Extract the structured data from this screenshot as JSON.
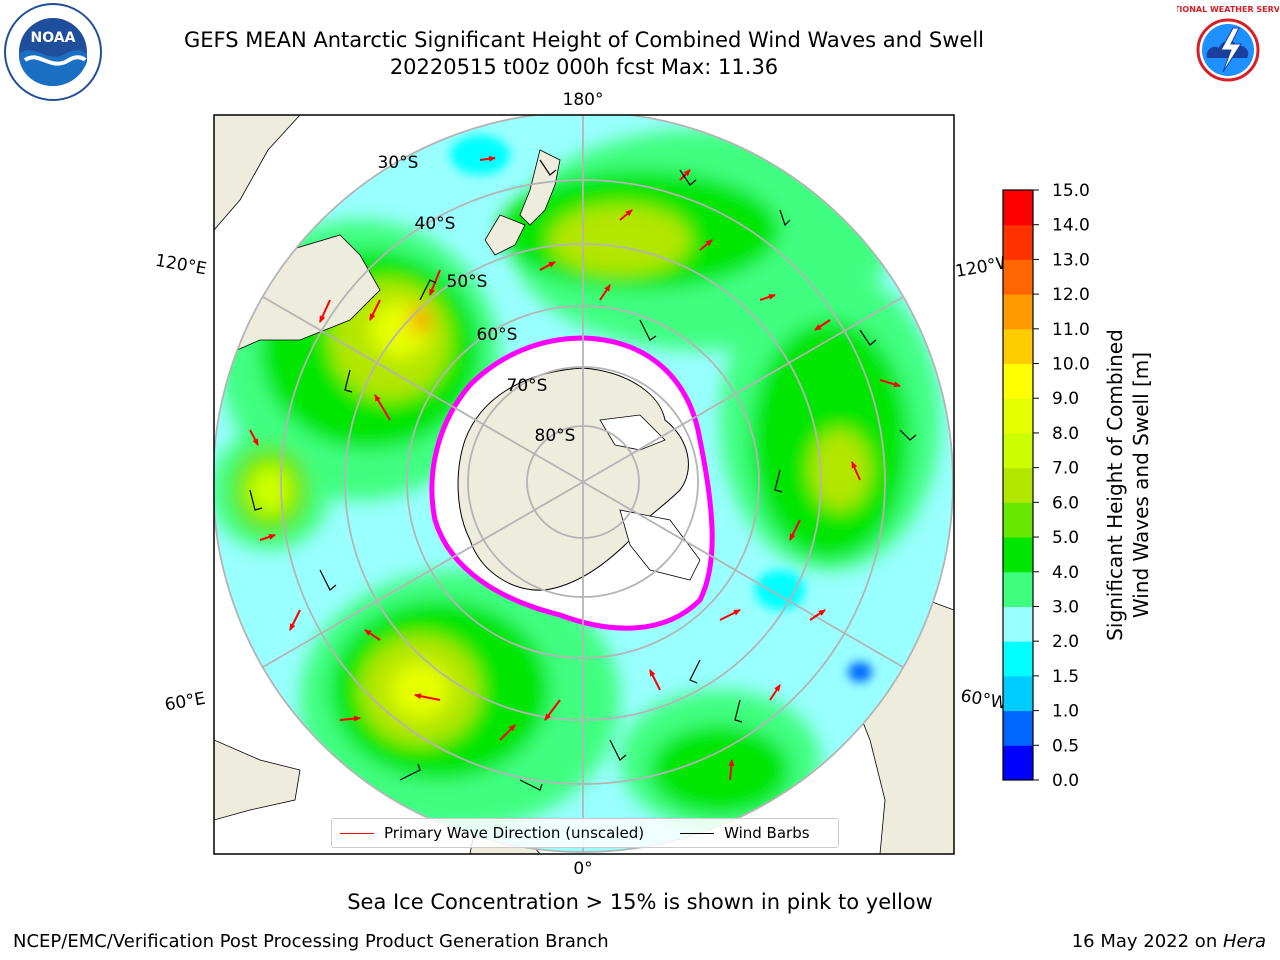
{
  "header": {
    "title_line1": "GEFS MEAN Antarctic Significant Height of Combined Wind Waves and Swell",
    "title_line2": "20220515 t00z 000h fcst   Max: 11.36"
  },
  "logos": {
    "noaa_text": "NOAA",
    "nws_text": "NATIONAL WEATHER SERVICE",
    "noaa_ring_text": "NATIONAL OCEANIC AND ATMOSPHERIC ADMINISTRATION · U.S. DEPARTMENT OF COMMERCE"
  },
  "map": {
    "projection": "south-polar-stereographic",
    "longitude_labels": {
      "top": "180°",
      "bottom": "0°",
      "upper_left": "120°E",
      "upper_right": "120°W",
      "lower_left": "60°E",
      "lower_right": "60°W"
    },
    "latitude_labels": [
      "30°S",
      "40°S",
      "50°S",
      "60°S",
      "70°S",
      "80°S"
    ],
    "colors": {
      "land": "#eeecdc",
      "ice_edge": "#ff00ff",
      "wave_arrow": "#ff0000",
      "wind_barb": "#000000",
      "graticule": "#b4b4b4"
    }
  },
  "legend": {
    "items": [
      {
        "label": "Primary Wave Direction (unscaled)",
        "color": "#ff0000"
      },
      {
        "label": "Wind Barbs",
        "color": "#000000"
      }
    ]
  },
  "colorbar": {
    "label_line1": "Significant Height of Combined",
    "label_line2": "Wind Waves and Swell [m]",
    "ticks": [
      "0.0",
      "0.5",
      "1.0",
      "1.5",
      "2.0",
      "3.0",
      "4.0",
      "5.0",
      "6.0",
      "7.0",
      "8.0",
      "9.0",
      "10.0",
      "11.0",
      "12.0",
      "13.0",
      "14.0",
      "15.0"
    ],
    "colors": [
      "#0000ff",
      "#0066ff",
      "#00ccff",
      "#00ffff",
      "#99ffff",
      "#40ff80",
      "#00e600",
      "#66e600",
      "#b3e600",
      "#ccff00",
      "#e6ff00",
      "#ffff00",
      "#ffcc00",
      "#ff9900",
      "#ff6600",
      "#ff3300",
      "#ff0000"
    ]
  },
  "note": "Sea Ice Concentration > 15% is shown in pink to yellow",
  "footer": {
    "left": "NCEP/EMC/Verification Post Processing Product Generation Branch",
    "right_date": "16 May 2022 on ",
    "right_machine": "Hera"
  }
}
